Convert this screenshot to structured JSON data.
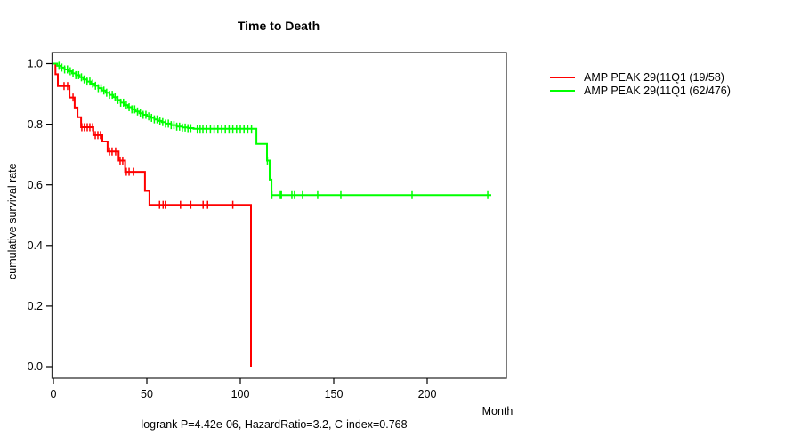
{
  "figure": {
    "title": "Time to Death",
    "xlabel": "Month",
    "ylabel": "cumulative survival rate",
    "annotation": "logrank P=4.42e-06, HazardRatio=3.2, C-index=0.768"
  },
  "chart_data": {
    "type": "line",
    "subtype": "kaplan-meier-step",
    "title": "Time to Death",
    "xlabel": "Month",
    "ylabel": "cumulative survival rate",
    "annotation": "logrank P=4.42e-06, HazardRatio=3.2, C-index=0.768",
    "grid": false,
    "legend_position": "top-right-outside",
    "xlim": [
      -1,
      242
    ],
    "ylim": [
      0,
      1
    ],
    "xticks": [
      0,
      50,
      100,
      150,
      200
    ],
    "yticks": [
      0,
      0.2,
      0.4,
      0.6,
      0.8,
      1.0
    ],
    "ytick_labels": [
      "0.0",
      "0.2",
      "0.4",
      "0.6",
      "0.8",
      "1.0"
    ],
    "axis_color": "#000000",
    "box_color": "#333333",
    "series": [
      {
        "id": "group1-red",
        "name": "AMP PEAK 29(11Q1 (19/58)",
        "color": "#ff0000",
        "step_points": [
          [
            0,
            1.0
          ],
          [
            1.1,
            0.965
          ],
          [
            2.4,
            0.926
          ],
          [
            8.6,
            0.888
          ],
          [
            11.4,
            0.855
          ],
          [
            12.9,
            0.823
          ],
          [
            14.8,
            0.79
          ],
          [
            21.4,
            0.764
          ],
          [
            26.2,
            0.743
          ],
          [
            29,
            0.71
          ],
          [
            34.9,
            0.68
          ],
          [
            38.4,
            0.643
          ],
          [
            49,
            0.58
          ],
          [
            51.4,
            0.534
          ],
          [
            105.7,
            0.0
          ]
        ],
        "censor_marks": [
          5.7,
          7.6,
          10.5,
          15.2,
          16.6,
          18.1,
          19.5,
          21,
          22.4,
          23.8,
          25.2,
          30,
          31.4,
          33.3,
          35.7,
          37.1,
          39,
          40.5,
          42.9,
          56.8,
          58.7,
          59.9,
          68,
          73.5,
          80.1,
          82.5,
          96
        ]
      },
      {
        "id": "group2-green",
        "name": "AMP PEAK 29(11Q1 (62/476)",
        "color": "#00ff00",
        "step_points": [
          [
            0,
            1.0
          ],
          [
            2,
            0.993
          ],
          [
            4,
            0.987
          ],
          [
            6,
            0.981
          ],
          [
            8,
            0.975
          ],
          [
            10,
            0.968
          ],
          [
            12,
            0.962
          ],
          [
            14,
            0.955
          ],
          [
            16,
            0.948
          ],
          [
            18,
            0.941
          ],
          [
            20,
            0.934
          ],
          [
            22,
            0.927
          ],
          [
            24,
            0.919
          ],
          [
            26,
            0.911
          ],
          [
            28,
            0.904
          ],
          [
            30,
            0.897
          ],
          [
            32,
            0.889
          ],
          [
            34,
            0.88
          ],
          [
            36,
            0.871
          ],
          [
            38,
            0.863
          ],
          [
            40,
            0.856
          ],
          [
            42,
            0.849
          ],
          [
            44,
            0.842
          ],
          [
            46,
            0.836
          ],
          [
            48,
            0.831
          ],
          [
            50,
            0.826
          ],
          [
            52,
            0.821
          ],
          [
            54,
            0.816
          ],
          [
            56,
            0.811
          ],
          [
            58,
            0.807
          ],
          [
            60,
            0.802
          ],
          [
            63,
            0.797
          ],
          [
            66,
            0.792
          ],
          [
            69,
            0.789
          ],
          [
            72,
            0.787
          ],
          [
            75,
            0.785
          ],
          [
            108.6,
            0.735
          ],
          [
            114.3,
            0.68
          ],
          [
            115.7,
            0.617
          ],
          [
            116.7,
            0.566
          ],
          [
            234.3,
            0.566
          ]
        ],
        "censor_marks": [
          3,
          4.5,
          6,
          7.5,
          9,
          10.5,
          12,
          13.5,
          15,
          16.5,
          18,
          19.5,
          21,
          22.5,
          24,
          25.5,
          27,
          28.5,
          30,
          31.5,
          33,
          34.5,
          36,
          37.5,
          39,
          40.5,
          42,
          43.5,
          45,
          46.5,
          48,
          49.5,
          51,
          52.5,
          54,
          55.5,
          57,
          58.5,
          60,
          61.5,
          63,
          64.5,
          66,
          67.5,
          69,
          70.5,
          72,
          73.5,
          77,
          78.5,
          80,
          82,
          84,
          86,
          88,
          90,
          92,
          94,
          96,
          98,
          100,
          102,
          104,
          106,
          114.5,
          116.9,
          121.4,
          122,
          127.6,
          129,
          133.3,
          141.4,
          153.8,
          191.9,
          232.4
        ]
      }
    ]
  }
}
